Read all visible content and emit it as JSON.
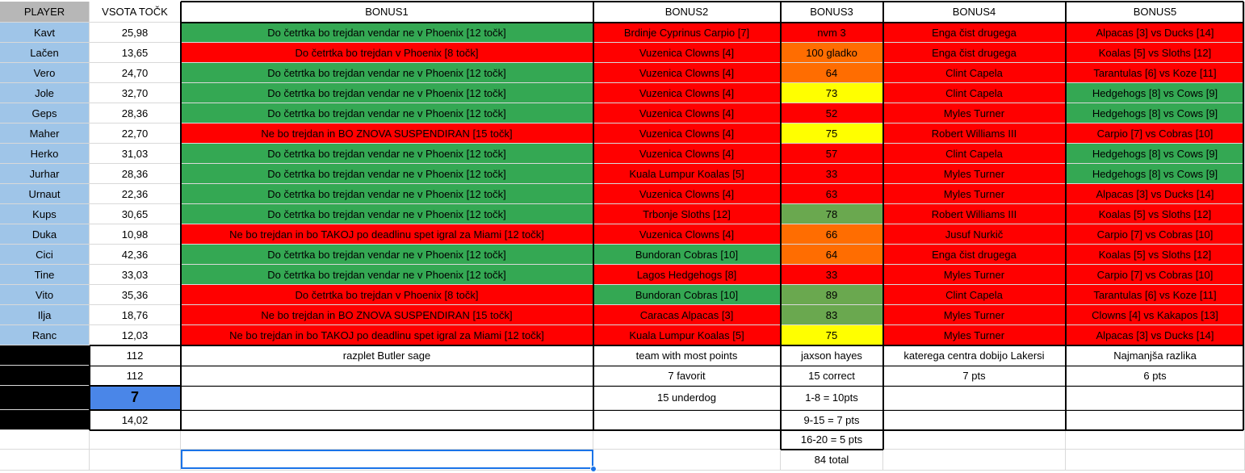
{
  "header": {
    "player": "PLAYER",
    "vsota": "VSOTA TOČK",
    "bonus1": "BONUS1",
    "bonus2": "BONUS2",
    "bonus3": "BONUS3",
    "bonus4": "BONUS4",
    "bonus5": "BONUS5"
  },
  "rows": [
    {
      "player": "Kavt",
      "points": "25,98",
      "b1": "Do četrtka bo trejdan vendar ne v Phoenix [12 točk]",
      "b1c": "green",
      "b2": "Brdinje Cyprinus Carpio [7]",
      "b2c": "red",
      "b3": "nvm 3",
      "b3c": "red",
      "b4": "Enga čist drugega",
      "b4c": "red",
      "b5": "Alpacas [3] vs Ducks [14]",
      "b5c": "red"
    },
    {
      "player": "Lačen",
      "points": "13,65",
      "b1": "Do četrtka bo trejdan v Phoenix [8 točk]",
      "b1c": "red",
      "b2": "Vuzenica Clowns [4]",
      "b2c": "red",
      "b3": "100 gladko",
      "b3c": "orange",
      "b4": "Enga čist drugega",
      "b4c": "red",
      "b5": "Koalas [5] vs Sloths [12]",
      "b5c": "red"
    },
    {
      "player": "Vero",
      "points": "24,70",
      "b1": "Do četrtka bo trejdan vendar ne v Phoenix [12 točk]",
      "b1c": "green",
      "b2": "Vuzenica Clowns [4]",
      "b2c": "red",
      "b3": "64",
      "b3c": "orange",
      "b4": "Clint Capela",
      "b4c": "red",
      "b5": "Tarantulas [6] vs Koze [11]",
      "b5c": "red"
    },
    {
      "player": "Jole",
      "points": "32,70",
      "b1": "Do četrtka bo trejdan vendar ne v Phoenix [12 točk]",
      "b1c": "green",
      "b2": "Vuzenica Clowns [4]",
      "b2c": "red",
      "b3": "73",
      "b3c": "yellow",
      "b4": "Clint Capela",
      "b4c": "red",
      "b5": "Hedgehogs [8] vs Cows [9]",
      "b5c": "green"
    },
    {
      "player": "Geps",
      "points": "28,36",
      "b1": "Do četrtka bo trejdan vendar ne v Phoenix [12 točk]",
      "b1c": "green",
      "b2": "Vuzenica Clowns [4]",
      "b2c": "red",
      "b3": "52",
      "b3c": "red",
      "b4": "Myles Turner",
      "b4c": "red",
      "b5": "Hedgehogs [8] vs Cows [9]",
      "b5c": "green"
    },
    {
      "player": "Maher",
      "points": "22,70",
      "b1": "Ne bo trejdan in BO ZNOVA SUSPENDIRAN [15 točk]",
      "b1c": "red",
      "b2": "Vuzenica Clowns [4]",
      "b2c": "red",
      "b3": "75",
      "b3c": "yellow",
      "b4": "Robert Williams III",
      "b4c": "red",
      "b5": "Carpio [7] vs Cobras [10]",
      "b5c": "red"
    },
    {
      "player": "Herko",
      "points": "31,03",
      "b1": "Do četrtka bo trejdan vendar ne v Phoenix [12 točk]",
      "b1c": "green",
      "b2": "Vuzenica Clowns [4]",
      "b2c": "red",
      "b3": "57",
      "b3c": "red",
      "b4": "Clint Capela",
      "b4c": "red",
      "b5": "Hedgehogs [8] vs Cows [9]",
      "b5c": "green"
    },
    {
      "player": "Jurhar",
      "points": "28,36",
      "b1": "Do četrtka bo trejdan vendar ne v Phoenix [12 točk]",
      "b1c": "green",
      "b2": "Kuala Lumpur Koalas [5]",
      "b2c": "red",
      "b3": "33",
      "b3c": "red",
      "b4": "Myles Turner",
      "b4c": "red",
      "b5": "Hedgehogs [8] vs Cows [9]",
      "b5c": "green"
    },
    {
      "player": "Urnaut",
      "points": "22,36",
      "b1": "Do četrtka bo trejdan vendar ne v Phoenix [12 točk]",
      "b1c": "green",
      "b2": "Vuzenica Clowns [4]",
      "b2c": "red",
      "b3": "63",
      "b3c": "red",
      "b4": "Myles Turner",
      "b4c": "red",
      "b5": "Alpacas [3] vs Ducks [14]",
      "b5c": "red"
    },
    {
      "player": "Kups",
      "points": "30,65",
      "b1": "Do četrtka bo trejdan vendar ne v Phoenix [12 točk]",
      "b1c": "green",
      "b2": "Trbonje Sloths [12]",
      "b2c": "red",
      "b3": "78",
      "b3c": "olive",
      "b4": "Robert Williams III",
      "b4c": "red",
      "b5": "Koalas [5] vs Sloths [12]",
      "b5c": "red"
    },
    {
      "player": "Duka",
      "points": "10,98",
      "b1": "Ne bo trejdan in bo TAKOJ po deadlinu spet igral za Miami   [12 točk]",
      "b1c": "red",
      "b2": "Vuzenica Clowns [4]",
      "b2c": "red",
      "b3": "66",
      "b3c": "orange",
      "b4": "Jusuf Nurkič",
      "b4c": "red",
      "b5": "Carpio [7] vs Cobras [10]",
      "b5c": "red"
    },
    {
      "player": "Cici",
      "points": "42,36",
      "b1": "Do četrtka bo trejdan vendar ne v Phoenix [12 točk]",
      "b1c": "green",
      "b2": "Bundoran Cobras [10]",
      "b2c": "green",
      "b3": "64",
      "b3c": "orange",
      "b4": "Enga čist drugega",
      "b4c": "red",
      "b5": "Koalas [5] vs Sloths [12]",
      "b5c": "red"
    },
    {
      "player": "Tine",
      "points": "33,03",
      "b1": "Do četrtka bo trejdan vendar ne v Phoenix [12 točk]",
      "b1c": "green",
      "b2": "Lagos Hedgehogs [8]",
      "b2c": "red",
      "b3": "33",
      "b3c": "red",
      "b4": "Myles Turner",
      "b4c": "red",
      "b5": "Carpio [7] vs Cobras [10]",
      "b5c": "red"
    },
    {
      "player": "Vito",
      "points": "35,36",
      "b1": "Do četrtka bo trejdan v Phoenix [8 točk]",
      "b1c": "red",
      "b2": "Bundoran Cobras [10]",
      "b2c": "green",
      "b3": "89",
      "b3c": "olive",
      "b4": "Clint Capela",
      "b4c": "red",
      "b5": "Tarantulas [6] vs Koze [11]",
      "b5c": "red"
    },
    {
      "player": "Ilja",
      "points": "18,76",
      "b1": "Ne bo trejdan in BO ZNOVA SUSPENDIRAN [15 točk]",
      "b1c": "red",
      "b2": "Caracas Alpacas [3]",
      "b2c": "red",
      "b3": "83",
      "b3c": "olive",
      "b4": "Myles Turner",
      "b4c": "red",
      "b5": "Clowns [4] vs Kakapos [13]",
      "b5c": "red"
    },
    {
      "player": "Ranc",
      "points": "12,03",
      "b1": "Ne bo trejdan in bo TAKOJ po deadlinu spet igral za Miami   [12 točk]",
      "b1c": "red",
      "b2": "Kuala Lumpur Koalas [5]",
      "b2c": "red",
      "b3": "75",
      "b3c": "yellow",
      "b4": "Myles Turner",
      "b4c": "red",
      "b5": "Alpacas [3] vs Ducks [14]",
      "b5c": "red"
    }
  ],
  "footer": [
    {
      "vsota": "112",
      "b1": "razplet Butler sage",
      "b2": "team with most points",
      "b3": "jaxson hayes",
      "b4": "katerega centra dobijo Lakersi",
      "b5": "Najmanjša razlika"
    },
    {
      "vsota": "112",
      "b1": "",
      "b2": "7 favorit",
      "b3": "15 correct",
      "b4": "7 pts",
      "b5": "6 pts"
    },
    {
      "vsota": "7",
      "b1": "",
      "b2": "15 underdog",
      "b3": "1-8 = 10pts",
      "b4": "",
      "b5": ""
    },
    {
      "vsota": "14,02",
      "b1": "",
      "b2": "",
      "b3": "9-15 = 7 pts",
      "b4": "",
      "b5": ""
    },
    {
      "vsota": "",
      "b1": "",
      "b2": "",
      "b3": "16-20 = 5 pts",
      "b4": "",
      "b5": ""
    },
    {
      "vsota": "",
      "b1": "",
      "b2": "",
      "b3": "84 total",
      "b4": "",
      "b5": ""
    }
  ],
  "colors": {
    "green": "#34a853",
    "red": "#ff0000",
    "orange": "#ff6d01",
    "yellow": "#ffff00",
    "olive": "#6aa84f",
    "player_bg": "#9fc5e8",
    "header_bg": "#b7b7b7",
    "selected_blue": "#4a86e8",
    "selection_border": "#1a73e8"
  }
}
